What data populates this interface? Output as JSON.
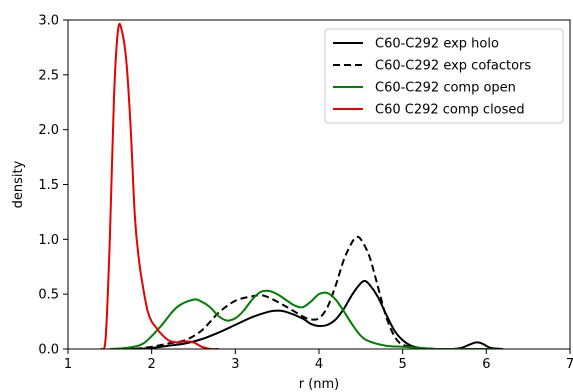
{
  "chart_data": {
    "type": "line",
    "title": "",
    "xlabel": "r (nm)",
    "ylabel": "density",
    "xlim": [
      1,
      7
    ],
    "ylim": [
      0,
      3.0
    ],
    "xticks": [
      1,
      2,
      3,
      4,
      5,
      6,
      7
    ],
    "xtick_labels": [
      "1",
      "2",
      "3",
      "4",
      "5",
      "6",
      "7"
    ],
    "yticks": [
      0,
      0.5,
      1.0,
      1.5,
      2.0,
      2.5,
      3.0
    ],
    "ytick_labels": [
      "0.0",
      "0.5",
      "1.0",
      "1.5",
      "2.0",
      "2.5",
      "3.0"
    ],
    "grid": false,
    "legend_position": "top-right",
    "series": [
      {
        "name": "C60-C292 exp holo",
        "color": "#000000",
        "dash": "solid",
        "x": [
          1.6,
          1.8,
          2.0,
          2.2,
          2.4,
          2.6,
          2.8,
          3.0,
          3.2,
          3.4,
          3.5,
          3.6,
          3.8,
          3.9,
          4.0,
          4.1,
          4.2,
          4.3,
          4.4,
          4.5,
          4.55,
          4.6,
          4.7,
          4.8,
          4.9,
          5.0,
          5.1,
          5.2,
          5.4,
          5.6,
          5.7,
          5.8,
          5.88,
          5.95,
          6.05,
          6.2
        ],
        "y": [
          0.0,
          0.0,
          0.01,
          0.03,
          0.05,
          0.09,
          0.15,
          0.22,
          0.29,
          0.34,
          0.35,
          0.34,
          0.28,
          0.23,
          0.21,
          0.22,
          0.27,
          0.37,
          0.5,
          0.6,
          0.62,
          0.59,
          0.48,
          0.32,
          0.17,
          0.08,
          0.03,
          0.01,
          0.0,
          0.0,
          0.01,
          0.04,
          0.06,
          0.05,
          0.01,
          0.0
        ]
      },
      {
        "name": "C60-C292 exp cofactors",
        "color": "#000000",
        "dash": "dashed",
        "x": [
          1.8,
          2.0,
          2.2,
          2.4,
          2.6,
          2.8,
          3.0,
          3.2,
          3.3,
          3.4,
          3.6,
          3.8,
          3.9,
          4.0,
          4.1,
          4.2,
          4.3,
          4.4,
          4.45,
          4.5,
          4.6,
          4.7,
          4.8,
          4.9,
          5.0,
          5.2,
          5.4
        ],
        "y": [
          0.0,
          0.02,
          0.05,
          0.08,
          0.17,
          0.33,
          0.44,
          0.48,
          0.49,
          0.47,
          0.39,
          0.3,
          0.27,
          0.28,
          0.38,
          0.58,
          0.82,
          0.98,
          1.02,
          1.0,
          0.85,
          0.58,
          0.3,
          0.12,
          0.04,
          0.01,
          0.0
        ]
      },
      {
        "name": "C60-C292 comp open",
        "color": "#008000",
        "dash": "solid",
        "x": [
          1.5,
          1.7,
          1.9,
          2.1,
          2.3,
          2.5,
          2.6,
          2.7,
          2.8,
          2.9,
          3.0,
          3.1,
          3.2,
          3.3,
          3.4,
          3.5,
          3.6,
          3.7,
          3.8,
          3.9,
          4.0,
          4.1,
          4.2,
          4.3,
          4.4,
          4.5,
          4.6,
          4.8,
          5.0,
          5.2,
          5.4,
          5.6,
          5.8,
          6.0,
          6.1
        ],
        "y": [
          0.0,
          0.01,
          0.05,
          0.2,
          0.38,
          0.45,
          0.43,
          0.38,
          0.3,
          0.26,
          0.28,
          0.35,
          0.45,
          0.52,
          0.53,
          0.5,
          0.45,
          0.4,
          0.38,
          0.43,
          0.5,
          0.51,
          0.45,
          0.34,
          0.22,
          0.12,
          0.07,
          0.03,
          0.02,
          0.01,
          0.0,
          0.0,
          0.0,
          0.0,
          0.0
        ]
      },
      {
        "name": "C60 C292 comp closed",
        "color": "#e60000",
        "dash": "solid",
        "x": [
          1.4,
          1.45,
          1.5,
          1.55,
          1.6,
          1.65,
          1.7,
          1.75,
          1.8,
          1.85,
          1.9,
          1.95,
          2.0,
          2.05,
          2.1,
          2.2,
          2.3,
          2.4,
          2.5,
          2.6,
          2.7,
          2.8
        ],
        "y": [
          0.0,
          0.1,
          1.0,
          2.3,
          2.92,
          2.88,
          2.6,
          2.0,
          1.2,
          0.8,
          0.55,
          0.35,
          0.25,
          0.2,
          0.15,
          0.08,
          0.06,
          0.07,
          0.06,
          0.02,
          0.0,
          0.0
        ]
      }
    ]
  }
}
